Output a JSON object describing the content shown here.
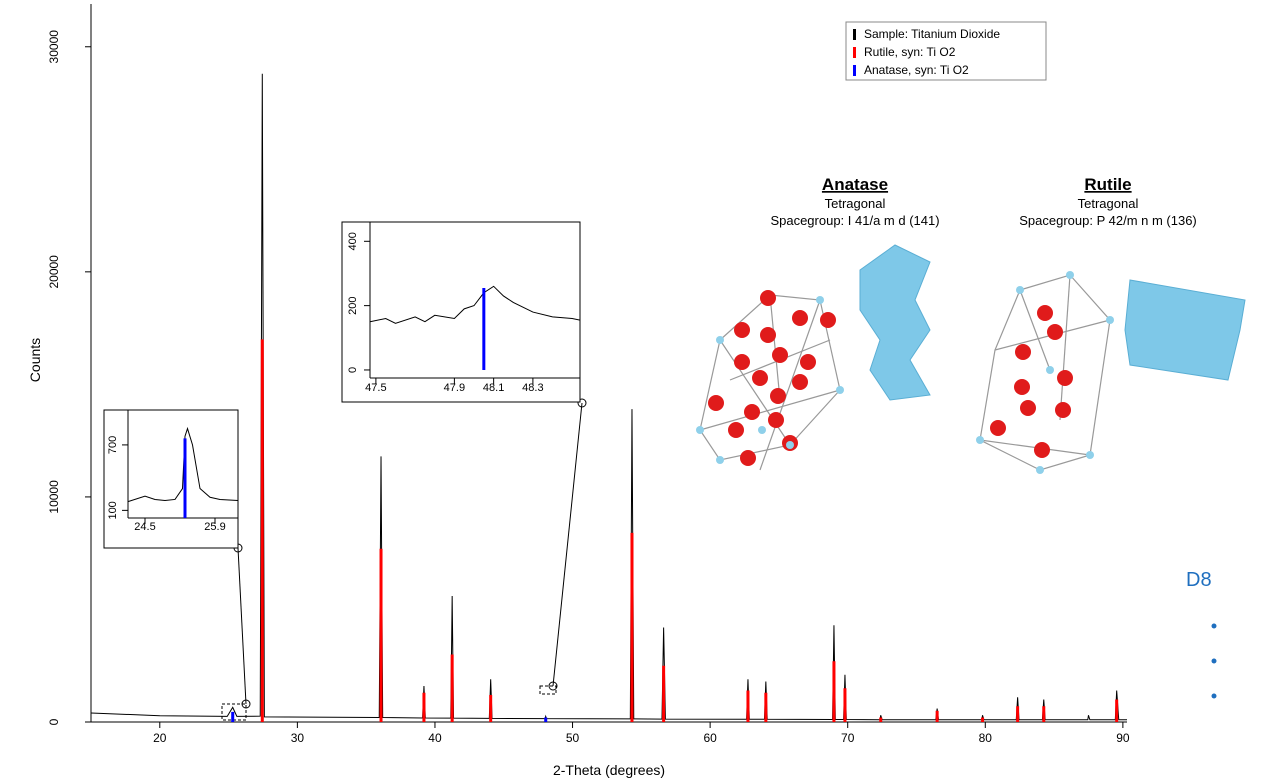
{
  "chart_data": [
    {
      "type": "line",
      "xlabel": "2-Theta (degrees)",
      "ylabel": "Counts",
      "xlim": [
        15,
        90.3
      ],
      "ylim": [
        0,
        31900
      ],
      "xticks": [
        20,
        30,
        40,
        50,
        60,
        70,
        80,
        90
      ],
      "yticks": [
        0,
        10000,
        20000,
        30000
      ],
      "legend": "upper right",
      "series": [
        {
          "name": "Sample: Titanium Dioxide",
          "color": "#000000",
          "style": "line",
          "x": [
            15,
            20,
            24.9,
            25.3,
            25.6,
            27.3,
            27.45,
            27.6,
            35.95,
            36.08,
            36.2,
            39.1,
            39.2,
            39.3,
            41.15,
            41.25,
            41.35,
            43.95,
            44.05,
            44.15,
            48.0,
            48.05,
            48.1,
            54.2,
            54.32,
            54.45,
            56.5,
            56.62,
            56.75,
            62.65,
            62.75,
            62.85,
            63.95,
            64.05,
            64.15,
            68.9,
            69.0,
            69.1,
            69.7,
            69.8,
            69.9,
            72.35,
            72.4,
            72.5,
            76.4,
            76.5,
            76.6,
            79.75,
            79.8,
            79.9,
            82.25,
            82.35,
            82.45,
            84.15,
            84.25,
            84.35,
            87.45,
            87.5,
            87.6,
            89.45,
            89.55,
            89.7,
            90.3
          ],
          "values": [
            400,
            280,
            250,
            650,
            250,
            260,
            28800,
            230,
            200,
            11800,
            200,
            180,
            1600,
            180,
            170,
            5600,
            170,
            160,
            1900,
            160,
            150,
            250,
            150,
            140,
            13900,
            140,
            130,
            4200,
            130,
            120,
            1900,
            120,
            120,
            1800,
            120,
            110,
            4300,
            110,
            110,
            2100,
            110,
            100,
            300,
            100,
            100,
            600,
            100,
            100,
            300,
            100,
            100,
            1100,
            100,
            100,
            1000,
            100,
            100,
            300,
            100,
            100,
            1400,
            100,
            100
          ]
        },
        {
          "name": "Rutile, syn: Ti O2",
          "color": "#ff0000",
          "style": "sticks",
          "x": [
            27.45,
            36.08,
            39.2,
            41.25,
            44.05,
            54.32,
            56.62,
            62.75,
            64.05,
            69.0,
            69.8,
            72.4,
            76.5,
            79.8,
            82.35,
            84.25,
            89.55
          ],
          "values": [
            17000,
            7700,
            1300,
            3000,
            1200,
            8400,
            2500,
            1400,
            1300,
            2700,
            1500,
            200,
            500,
            200,
            700,
            700,
            1000
          ]
        },
        {
          "name": "Anatase, syn: Ti O2",
          "color": "#0000ff",
          "style": "sticks",
          "x": [
            25.3,
            48.05
          ],
          "values": [
            450,
            200
          ]
        }
      ]
    },
    {
      "type": "line",
      "xlim": [
        24.16,
        26.36
      ],
      "ylim": [
        30,
        1020
      ],
      "xticks": [
        24.5,
        25.9
      ],
      "yticks": [
        100,
        700
      ],
      "series": [
        {
          "color": "#000000",
          "style": "line",
          "x": [
            24.16,
            24.5,
            24.7,
            24.9,
            25.1,
            25.25,
            25.3,
            25.35,
            25.45,
            25.6,
            25.8,
            26.0,
            26.36
          ],
          "values": [
            180,
            230,
            200,
            190,
            200,
            300,
            780,
            850,
            700,
            300,
            220,
            200,
            190
          ]
        },
        {
          "color": "#0000ff",
          "style": "sticks",
          "x": [
            25.3
          ],
          "values": [
            760
          ]
        }
      ]
    },
    {
      "type": "line",
      "xlim": [
        47.47,
        48.54
      ],
      "ylim": [
        -25,
        460
      ],
      "xticks": [
        47.5,
        47.9,
        48.1,
        48.3
      ],
      "yticks": [
        0,
        200,
        400
      ],
      "series": [
        {
          "color": "#000000",
          "style": "line",
          "x": [
            47.47,
            47.55,
            47.6,
            47.7,
            47.75,
            47.8,
            47.9,
            47.95,
            48.0,
            48.05,
            48.1,
            48.15,
            48.2,
            48.3,
            48.4,
            48.5,
            48.54
          ],
          "values": [
            150,
            160,
            145,
            165,
            150,
            170,
            160,
            190,
            200,
            240,
            260,
            230,
            210,
            180,
            165,
            160,
            155
          ]
        },
        {
          "color": "#0000ff",
          "style": "sticks",
          "x": [
            48.05
          ],
          "values": [
            255
          ]
        }
      ]
    }
  ],
  "structures": [
    {
      "name": "Anatase",
      "system": "Tetragonal",
      "spacegroup": "Spacegroup: I 41/a m d (141)"
    },
    {
      "name": "Rutile",
      "system": "Tetragonal",
      "spacegroup": "Spacegroup: P 42/m n m (136)"
    }
  ],
  "sidebar": {
    "title": "D8"
  }
}
